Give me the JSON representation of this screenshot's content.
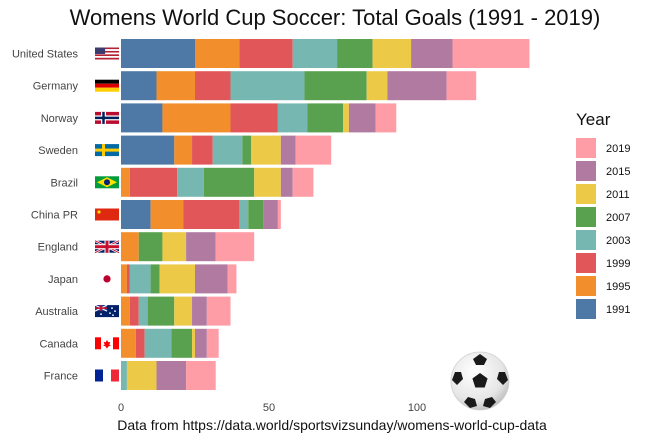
{
  "chart_data": {
    "type": "bar",
    "orientation": "horizontal",
    "stacked": true,
    "title": "Womens World Cup Soccer: Total Goals (1991 - 2019)",
    "caption": "Data from https://data.world/sportsvizsunday/womens-world-cup-data",
    "categories": [
      "United States",
      "Germany",
      "Norway",
      "Sweden",
      "Brazil",
      "China PR",
      "England",
      "Japan",
      "Australia",
      "Canada",
      "France"
    ],
    "x_ticks": [
      0,
      50,
      100
    ],
    "xlim": [
      -5,
      135
    ],
    "grid": false,
    "legend": {
      "title": "Year",
      "position": "right"
    },
    "series": [
      {
        "name": "1991",
        "color": "#4E79A7",
        "values": [
          25,
          12,
          14,
          18,
          0,
          10,
          0,
          0,
          0,
          0,
          0
        ]
      },
      {
        "name": "1995",
        "color": "#F28E2B",
        "values": [
          15,
          13,
          23,
          6,
          3,
          11,
          6,
          2,
          3,
          5,
          0
        ]
      },
      {
        "name": "1999",
        "color": "#E15759",
        "values": [
          18,
          12,
          16,
          7,
          16,
          19,
          0,
          1,
          3,
          3,
          0
        ]
      },
      {
        "name": "2003",
        "color": "#76B7B2",
        "values": [
          15,
          25,
          10,
          10,
          9,
          3,
          0,
          7,
          3,
          9,
          2
        ]
      },
      {
        "name": "2007",
        "color": "#59A14F",
        "values": [
          12,
          21,
          12,
          3,
          17,
          5,
          8,
          3,
          9,
          7,
          0
        ]
      },
      {
        "name": "2011",
        "color": "#EDC948",
        "values": [
          13,
          7,
          2,
          10,
          9,
          0,
          8,
          12,
          6,
          1,
          10
        ]
      },
      {
        "name": "2015",
        "color": "#B07AA1",
        "values": [
          14,
          20,
          9,
          5,
          4,
          5,
          10,
          11,
          5,
          4,
          10
        ]
      },
      {
        "name": "2019",
        "color": "#FF9DA7",
        "values": [
          26,
          10,
          7,
          12,
          7,
          1,
          13,
          3,
          8,
          4,
          10
        ]
      }
    ]
  },
  "flag_icons": [
    "usa-flag-icon",
    "germany-flag-icon",
    "norway-flag-icon",
    "sweden-flag-icon",
    "brazil-flag-icon",
    "china-flag-icon",
    "england-flag-icon",
    "japan-flag-icon",
    "australia-flag-icon",
    "canada-flag-icon",
    "france-flag-icon"
  ],
  "decoration_icon": "soccer-ball-icon"
}
